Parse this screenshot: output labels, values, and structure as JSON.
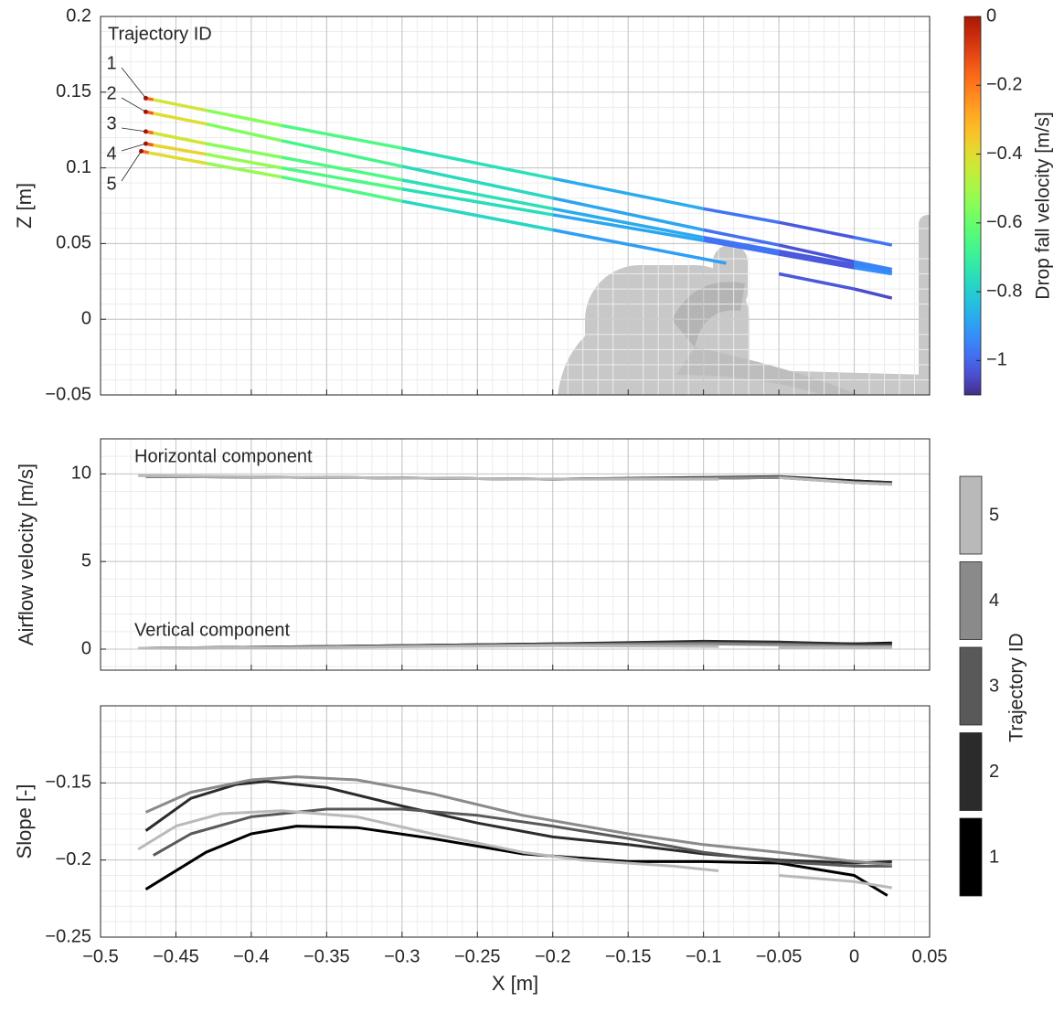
{
  "chart_data": [
    {
      "type": "colored-line",
      "ylabel": "Z [m]",
      "annotation": "Trajectory ID",
      "colormap": "turbo",
      "colorbar_label": "Drop fall velocity [m/s]",
      "clim": [
        -1.1,
        0
      ],
      "cticks": [
        0,
        {
          "value": -0.2,
          "label": "−0.2"
        },
        {
          "value": -0.4,
          "label": "−0.4"
        },
        {
          "value": -0.6,
          "label": "−0.6"
        },
        {
          "value": -0.8,
          "label": "−0.8"
        },
        {
          "value": -1,
          "label": "−1"
        }
      ],
      "xlim": [
        -0.5,
        0.05
      ],
      "xticks": [
        -0.5,
        -0.45,
        -0.4,
        -0.35,
        -0.3,
        -0.25,
        -0.2,
        -0.15,
        -0.1,
        -0.05,
        0,
        0.05
      ],
      "ylim": [
        -0.05,
        0.2
      ],
      "yticks": [
        {
          "value": -0.05,
          "label": "−0.05"
        },
        0,
        0.05,
        0.1,
        0.15,
        0.2
      ],
      "grid": true,
      "minor_grid": true,
      "series": [
        {
          "name": "1",
          "x": [
            -0.47,
            -0.465,
            -0.43,
            -0.38,
            -0.3,
            -0.2,
            -0.1,
            -0.05,
            0,
            0.025
          ],
          "values": [
            0.146,
            0.145,
            0.138,
            0.128,
            0.113,
            0.093,
            0.073,
            0.064,
            0.054,
            0.049
          ],
          "velocity": [
            0,
            -0.35,
            -0.5,
            -0.6,
            -0.7,
            -0.8,
            -0.95,
            -1,
            -1.05,
            -0.9
          ]
        },
        {
          "name": "2",
          "x": [
            -0.47,
            -0.465,
            -0.43,
            -0.38,
            -0.3,
            -0.2,
            -0.1,
            -0.05,
            0,
            0.025
          ],
          "values": [
            0.137,
            0.136,
            0.129,
            0.118,
            0.101,
            0.08,
            0.059,
            0.049,
            0.038,
            0.033
          ],
          "velocity": [
            0,
            -0.3,
            -0.5,
            -0.62,
            -0.72,
            -0.82,
            -0.95,
            -1.02,
            -1.05,
            -0.85
          ]
        },
        {
          "name": "3",
          "x": [
            -0.47,
            -0.465,
            -0.43,
            -0.38,
            -0.3,
            -0.2,
            -0.1,
            -0.05,
            0,
            0.025
          ],
          "values": [
            0.124,
            0.123,
            0.116,
            0.107,
            0.092,
            0.073,
            0.054,
            0.045,
            0.036,
            0.031
          ],
          "velocity": [
            0,
            -0.35,
            -0.5,
            -0.6,
            -0.7,
            -0.8,
            -0.95,
            -1,
            -1.05,
            -0.85
          ]
        },
        {
          "name": "4",
          "x": [
            -0.47,
            -0.465,
            -0.43,
            -0.38,
            -0.3,
            -0.2,
            -0.1,
            -0.05,
            0,
            0.025
          ],
          "values": [
            0.116,
            0.115,
            0.109,
            0.1,
            0.086,
            0.069,
            0.052,
            0.043,
            0.034,
            0.03
          ],
          "velocity": [
            0,
            -0.3,
            -0.45,
            -0.6,
            -0.7,
            -0.82,
            -0.95,
            -1,
            -1.05,
            -0.8
          ]
        },
        {
          "name": "5",
          "x": [
            -0.473,
            -0.468,
            -0.43,
            -0.38,
            -0.3,
            -0.2,
            -0.085,
            -0.07,
            -0.05,
            0,
            0.025
          ],
          "values": [
            0.111,
            0.11,
            0.103,
            0.094,
            0.078,
            0.059,
            0.037,
            null,
            0.03,
            0.02,
            0.014
          ],
          "velocity": [
            0,
            -0.35,
            -0.45,
            -0.6,
            -0.7,
            -0.85,
            -0.95,
            null,
            -1,
            -1.05,
            -1.05
          ]
        }
      ]
    },
    {
      "type": "line",
      "ylabel": "Airflow velocity [m/s]",
      "annotations": [
        "Horizontal component",
        "Vertical component"
      ],
      "colorbar_label": "Trajectory ID",
      "xlim": [
        -0.5,
        0.05
      ],
      "xticks": [
        -0.5,
        -0.45,
        -0.4,
        -0.35,
        -0.3,
        -0.25,
        -0.2,
        -0.15,
        -0.1,
        -0.05,
        0,
        0.05
      ],
      "ylim": [
        -1.2,
        12
      ],
      "yticks": [
        0,
        5,
        10
      ],
      "grid": true,
      "minor_grid": true,
      "series": [
        {
          "name": "1",
          "color": "#000000",
          "x": [
            -0.47,
            -0.35,
            -0.2,
            -0.1,
            -0.05,
            0,
            0.025
          ],
          "horizontal": [
            9.85,
            9.8,
            9.7,
            9.75,
            9.8,
            9.6,
            9.5
          ],
          "vertical": [
            0.05,
            0.15,
            0.3,
            0.4,
            0.35,
            0.3,
            0.35
          ]
        },
        {
          "name": "2",
          "color": "#2b2b2b",
          "x": [
            -0.47,
            -0.35,
            -0.2,
            -0.1,
            -0.05,
            0,
            0.025
          ],
          "horizontal": [
            9.85,
            9.8,
            9.7,
            9.8,
            9.85,
            9.6,
            9.5
          ],
          "vertical": [
            0.05,
            0.15,
            0.3,
            0.45,
            0.4,
            0.3,
            0.3
          ]
        },
        {
          "name": "3",
          "color": "#595959",
          "x": [
            -0.47,
            -0.35,
            -0.2,
            -0.1,
            -0.05,
            0,
            0.025
          ],
          "horizontal": [
            9.85,
            9.8,
            9.7,
            9.75,
            9.8,
            9.5,
            9.45
          ],
          "vertical": [
            0.05,
            0.12,
            0.25,
            0.35,
            0.3,
            0.2,
            0.2
          ]
        },
        {
          "name": "4",
          "color": "#8a8a8a",
          "x": [
            -0.47,
            -0.35,
            -0.2,
            -0.1,
            -0.05,
            0,
            0.025
          ],
          "horizontal": [
            9.85,
            9.8,
            9.7,
            9.75,
            9.8,
            9.5,
            9.4
          ],
          "vertical": [
            0.05,
            0.12,
            0.25,
            0.3,
            0.25,
            0.15,
            0.15
          ]
        },
        {
          "name": "5",
          "color": "#b9b9b9",
          "x": [
            -0.475,
            -0.35,
            -0.2,
            -0.09,
            -0.07,
            -0.05,
            0,
            0.025
          ],
          "horizontal": [
            9.9,
            9.8,
            9.7,
            9.7,
            null,
            9.8,
            9.5,
            9.4
          ],
          "vertical": [
            0.05,
            0.1,
            0.2,
            0.15,
            null,
            0.1,
            0.1,
            0.1
          ]
        }
      ]
    },
    {
      "type": "line",
      "ylabel": "Slope [-]",
      "xlabel": "X [m]",
      "xlim": [
        -0.5,
        0.05
      ],
      "xticks": [
        {
          "value": -0.5,
          "label": "−0.5"
        },
        {
          "value": -0.45,
          "label": "−0.45"
        },
        {
          "value": -0.4,
          "label": "−0.4"
        },
        {
          "value": -0.35,
          "label": "−0.35"
        },
        {
          "value": -0.3,
          "label": "−0.3"
        },
        {
          "value": -0.25,
          "label": "−0.25"
        },
        {
          "value": -0.2,
          "label": "−0.2"
        },
        {
          "value": -0.15,
          "label": "−0.15"
        },
        {
          "value": -0.1,
          "label": "−0.1"
        },
        {
          "value": -0.05,
          "label": "−0.05"
        },
        0,
        0.05
      ],
      "ylim": [
        -0.25,
        -0.1
      ],
      "yticks": [
        {
          "value": -0.25,
          "label": "−0.25"
        },
        {
          "value": -0.2,
          "label": "−0.2"
        },
        {
          "value": -0.15,
          "label": "−0.15"
        }
      ],
      "grid": true,
      "minor_grid": true,
      "series": [
        {
          "name": "1",
          "color": "#000000",
          "x": [
            -0.47,
            -0.43,
            -0.4,
            -0.37,
            -0.33,
            -0.28,
            -0.22,
            -0.15,
            -0.1,
            -0.05,
            0,
            0.022
          ],
          "values": [
            -0.219,
            -0.195,
            -0.183,
            -0.178,
            -0.179,
            -0.186,
            -0.196,
            -0.201,
            -0.201,
            -0.202,
            -0.21,
            -0.223
          ]
        },
        {
          "name": "2",
          "color": "#2b2b2b",
          "x": [
            -0.47,
            -0.44,
            -0.41,
            -0.39,
            -0.35,
            -0.3,
            -0.25,
            -0.2,
            -0.15,
            -0.1,
            -0.05,
            0,
            0.025
          ],
          "values": [
            -0.181,
            -0.16,
            -0.151,
            -0.149,
            -0.153,
            -0.165,
            -0.176,
            -0.185,
            -0.19,
            -0.196,
            -0.2,
            -0.202,
            -0.201
          ]
        },
        {
          "name": "3",
          "color": "#595959",
          "x": [
            -0.465,
            -0.44,
            -0.4,
            -0.35,
            -0.3,
            -0.25,
            -0.2,
            -0.15,
            -0.1,
            -0.05,
            0,
            0.025
          ],
          "values": [
            -0.197,
            -0.183,
            -0.172,
            -0.167,
            -0.167,
            -0.171,
            -0.178,
            -0.186,
            -0.195,
            -0.201,
            -0.204,
            -0.204
          ]
        },
        {
          "name": "4",
          "color": "#8a8a8a",
          "x": [
            -0.47,
            -0.44,
            -0.4,
            -0.37,
            -0.33,
            -0.28,
            -0.22,
            -0.15,
            -0.1,
            -0.05,
            0,
            0.025
          ],
          "values": [
            -0.169,
            -0.156,
            -0.148,
            -0.146,
            -0.148,
            -0.157,
            -0.171,
            -0.183,
            -0.19,
            -0.195,
            -0.201,
            -0.203
          ]
        },
        {
          "name": "5",
          "color": "#b9b9b9",
          "x": [
            -0.475,
            -0.45,
            -0.42,
            -0.38,
            -0.33,
            -0.28,
            -0.22,
            -0.18,
            -0.12,
            -0.09,
            -0.07,
            -0.05,
            0,
            0.025
          ],
          "values": [
            -0.193,
            -0.178,
            -0.17,
            -0.168,
            -0.172,
            -0.183,
            -0.195,
            -0.2,
            -0.204,
            -0.207,
            null,
            -0.21,
            -0.214,
            -0.218
          ]
        }
      ]
    }
  ]
}
